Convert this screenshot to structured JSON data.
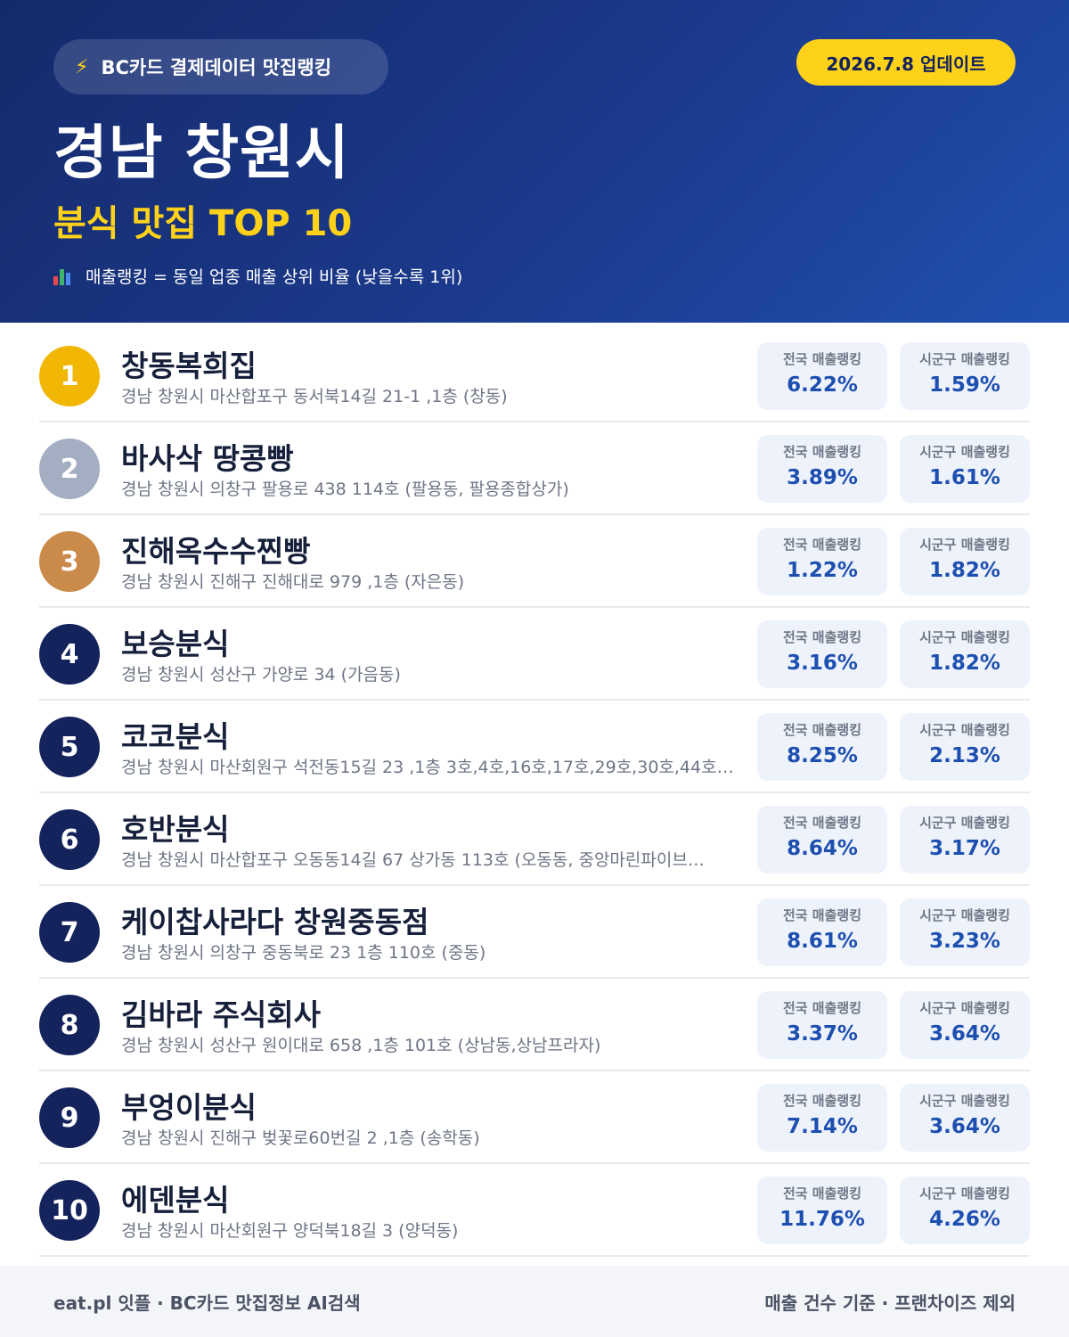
{
  "header": {
    "brand_icon": "lightning-bolt-icon",
    "brand_label": "BC카드 결제데이터 맛집랭킹",
    "update_badge": "2026.7.8 업데이트",
    "title": "경남 창원시",
    "subtitle": "분식 맛집 TOP 10",
    "legend_icon": "bar-chart-icon",
    "legend_text": "매출랭킹 = 동일 업종 매출 상위 비율 (낮을수록 1위)"
  },
  "stat_labels": {
    "national": "전국 매출랭킹",
    "district": "시군구 매출랭킹"
  },
  "colors": {
    "gold": "#f2b705",
    "silver": "#a3aec2",
    "bronze": "#c98a4a",
    "navy": "#14235c",
    "accent_yellow": "#ffd21a",
    "value_blue": "#1d4fb0"
  },
  "restaurants": [
    {
      "rank": "1",
      "name": "창동복희집",
      "address": "경남 창원시 마산합포구 동서북14길 21-1 ,1층 (창동)",
      "national": "6.22%",
      "district": "1.59%"
    },
    {
      "rank": "2",
      "name": "바사삭 땅콩빵",
      "address": "경남 창원시 의창구 팔용로 438 114호 (팔용동, 팔용종합상가)",
      "national": "3.89%",
      "district": "1.61%"
    },
    {
      "rank": "3",
      "name": "진해옥수수찐빵",
      "address": "경남 창원시 진해구 진해대로 979 ,1층 (자은동)",
      "national": "1.22%",
      "district": "1.82%"
    },
    {
      "rank": "4",
      "name": "보승분식",
      "address": "경남 창원시 성산구 가양로 34 (가음동)",
      "national": "3.16%",
      "district": "1.82%"
    },
    {
      "rank": "5",
      "name": "코코분식",
      "address": "경남 창원시 마산회원구 석전동15길 23 ,1층 3호,4호,16호,17호,29호,30호,44호…",
      "national": "8.25%",
      "district": "2.13%"
    },
    {
      "rank": "6",
      "name": "호반분식",
      "address": "경남 창원시 마산합포구 오동동14길 67 상가동 113호 (오동동, 중앙마린파이브…",
      "national": "8.64%",
      "district": "3.17%"
    },
    {
      "rank": "7",
      "name": "케이찹사라다 창원중동점",
      "address": "경남 창원시 의창구 중동북로 23 1층 110호 (중동)",
      "national": "8.61%",
      "district": "3.23%"
    },
    {
      "rank": "8",
      "name": "김바라 주식회사",
      "address": "경남 창원시 성산구 원이대로 658 ,1층 101호 (상남동,상남프라자)",
      "national": "3.37%",
      "district": "3.64%"
    },
    {
      "rank": "9",
      "name": "부엉이분식",
      "address": "경남 창원시 진해구 벚꽃로60번길 2 ,1층 (송학동)",
      "national": "7.14%",
      "district": "3.64%"
    },
    {
      "rank": "10",
      "name": "에덴분식",
      "address": "경남 창원시 마산회원구 양덕북18길 3 (양덕동)",
      "national": "11.76%",
      "district": "4.26%"
    }
  ],
  "footer": {
    "left": "eat.pl 잇플 · BC카드 맛집정보 AI검색",
    "right": "매출 건수 기준 · 프랜차이즈 제외"
  }
}
